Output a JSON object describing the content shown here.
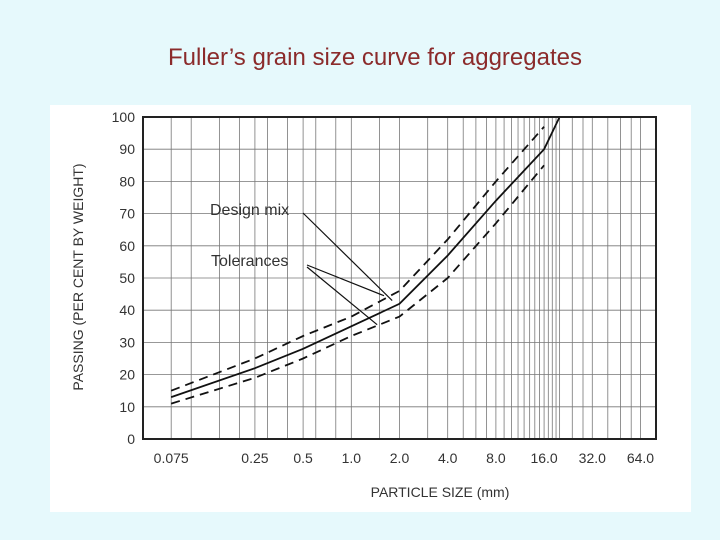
{
  "slide": {
    "title": "Fuller’s grain size curve for aggregates"
  },
  "chart_data": {
    "type": "line",
    "title": "",
    "xlabel": "PARTICLE SIZE (mm)",
    "ylabel": "PASSING (PER CENT BY WEIGHT)",
    "x_scale": "log",
    "x_ticks": [
      "0.075",
      "0.25",
      "0.5",
      "1.0",
      "2.0",
      "4.0",
      "8.0",
      "16.0",
      "32.0",
      "64.0"
    ],
    "y_ticks": [
      "0",
      "10",
      "20",
      "30",
      "40",
      "50",
      "60",
      "70",
      "80",
      "90",
      "100"
    ],
    "ylim": [
      0,
      100
    ],
    "grid": true,
    "series": [
      {
        "style": "solid",
        "x": [
          0.075,
          0.25,
          0.5,
          1.0,
          2.0,
          4.0,
          8.0,
          16.0,
          20.0
        ],
        "y": [
          13,
          22,
          28,
          35,
          42,
          57,
          74,
          90,
          100
        ]
      },
      {
        "style": "dashed",
        "x": [
          0.075,
          0.25,
          0.5,
          1.0,
          2.0,
          4.0,
          8.0,
          16.0
        ],
        "y": [
          15,
          25,
          32,
          38,
          46,
          62,
          80,
          97
        ]
      },
      {
        "style": "dashed",
        "x": [
          0.075,
          0.25,
          0.5,
          1.0,
          2.0,
          4.0,
          8.0,
          16.0
        ],
        "y": [
          11,
          19,
          25,
          32,
          38,
          50,
          67,
          85
        ]
      }
    ],
    "annotations": [
      {
        "text": "Design mix",
        "x": 2.0,
        "y": 42
      },
      {
        "text": "Tolerances",
        "x": 1.0,
        "y": 38
      }
    ]
  }
}
